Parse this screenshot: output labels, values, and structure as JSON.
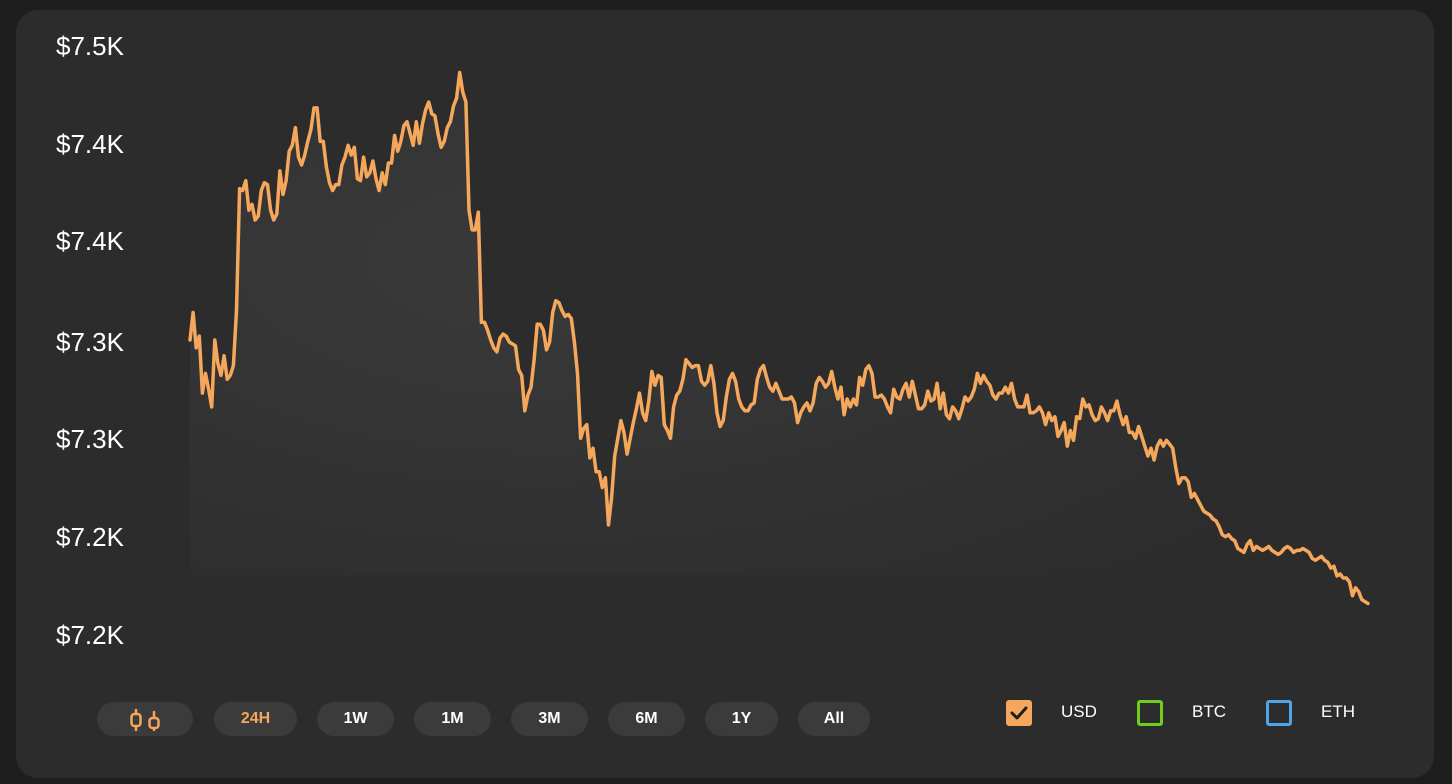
{
  "chart_data": {
    "type": "area",
    "y_ticks": [
      "$7.5K",
      "$7.4K",
      "$7.4K",
      "$7.3K",
      "$7.3K",
      "$7.2K",
      "$7.2K"
    ],
    "ylim": [
      7.175,
      7.475
    ],
    "series": [
      {
        "currency": "USD",
        "color": "#f5a75b",
        "values": [
          7.325,
          7.339,
          7.321,
          7.327,
          7.298,
          7.308,
          7.3,
          7.291,
          7.325,
          7.313,
          7.307,
          7.317,
          7.305,
          7.307,
          7.312,
          7.34,
          7.402,
          7.401,
          7.406,
          7.391,
          7.394,
          7.386,
          7.388,
          7.401,
          7.405,
          7.404,
          7.391,
          7.386,
          7.389,
          7.411,
          7.399,
          7.406,
          7.421,
          7.424,
          7.433,
          7.418,
          7.414,
          7.419,
          7.426,
          7.432,
          7.443,
          7.443,
          7.426,
          7.426,
          7.413,
          7.405,
          7.401,
          7.404,
          7.404,
          7.414,
          7.418,
          7.424,
          7.419,
          7.423,
          7.407,
          7.406,
          7.418,
          7.408,
          7.41,
          7.416,
          7.407,
          7.401,
          7.41,
          7.404,
          7.415,
          7.415,
          7.429,
          7.421,
          7.426,
          7.434,
          7.436,
          7.43,
          7.424,
          7.436,
          7.425,
          7.435,
          7.442,
          7.446,
          7.44,
          7.439,
          7.43,
          7.423,
          7.426,
          7.433,
          7.436,
          7.444,
          7.448,
          7.461,
          7.451,
          7.446,
          7.391,
          7.381,
          7.381,
          7.39,
          7.334,
          7.334,
          7.33,
          7.325,
          7.321,
          7.319,
          7.326,
          7.328,
          7.327,
          7.324,
          7.323,
          7.322,
          7.31,
          7.307,
          7.289,
          7.297,
          7.301,
          7.315,
          7.333,
          7.333,
          7.33,
          7.32,
          7.324,
          7.339,
          7.345,
          7.344,
          7.34,
          7.337,
          7.338,
          7.336,
          7.324,
          7.308,
          7.275,
          7.28,
          7.282,
          7.265,
          7.27,
          7.258,
          7.258,
          7.25,
          7.255,
          7.231,
          7.245,
          7.266,
          7.275,
          7.284,
          7.278,
          7.267,
          7.275,
          7.283,
          7.29,
          7.298,
          7.288,
          7.284,
          7.294,
          7.309,
          7.302,
          7.307,
          7.306,
          7.282,
          7.279,
          7.275,
          7.291,
          7.297,
          7.299,
          7.305,
          7.315,
          7.313,
          7.311,
          7.312,
          7.312,
          7.304,
          7.302,
          7.304,
          7.312,
          7.303,
          7.288,
          7.281,
          7.284,
          7.296,
          7.305,
          7.308,
          7.304,
          7.295,
          7.291,
          7.289,
          7.289,
          7.292,
          7.293,
          7.305,
          7.31,
          7.312,
          7.306,
          7.301,
          7.299,
          7.303,
          7.299,
          7.295,
          7.295,
          7.295,
          7.296,
          7.293,
          7.283,
          7.288,
          7.291,
          7.293,
          7.289,
          7.293,
          7.303,
          7.306,
          7.304,
          7.301,
          7.303,
          7.309,
          7.301,
          7.295,
          7.301,
          7.287,
          7.295,
          7.291,
          7.295,
          7.292,
          7.306,
          7.302,
          7.31,
          7.312,
          7.308,
          7.296,
          7.296,
          7.297,
          7.295,
          7.291,
          7.288,
          7.3,
          7.296,
          7.295,
          7.3,
          7.303,
          7.296,
          7.304,
          7.297,
          7.29,
          7.29,
          7.292,
          7.299,
          7.294,
          7.295,
          7.303,
          7.29,
          7.298,
          7.287,
          7.285,
          7.291,
          7.289,
          7.285,
          7.29,
          7.296,
          7.294,
          7.296,
          7.3,
          7.308,
          7.303,
          7.307,
          7.304,
          7.302,
          7.297,
          7.295,
          7.298,
          7.298,
          7.301,
          7.298,
          7.303,
          7.295,
          7.291,
          7.291,
          7.291,
          7.297,
          7.288,
          7.288,
          7.289,
          7.291,
          7.288,
          7.282,
          7.288,
          7.284,
          7.286,
          7.276,
          7.279,
          7.283,
          7.271,
          7.279,
          7.274,
          7.286,
          7.285,
          7.295,
          7.291,
          7.292,
          7.287,
          7.284,
          7.285,
          7.291,
          7.288,
          7.284,
          7.289,
          7.289,
          7.294,
          7.287,
          7.282,
          7.286,
          7.278,
          7.278,
          7.275,
          7.281,
          7.276,
          7.271,
          7.266,
          7.27,
          7.264,
          7.271,
          7.274,
          7.271,
          7.274,
          7.272,
          7.27,
          7.26,
          7.252,
          7.255,
          7.255,
          7.253,
          7.245,
          7.247,
          7.244,
          7.241,
          7.238,
          7.237,
          7.236,
          7.234,
          7.233,
          7.23,
          7.226,
          7.225,
          7.226,
          7.224,
          7.223,
          7.219,
          7.218,
          7.217,
          7.221,
          7.223,
          7.218,
          7.22,
          7.219,
          7.218,
          7.219,
          7.22,
          7.218,
          7.217,
          7.216,
          7.217,
          7.219,
          7.22,
          7.219,
          7.217,
          7.218,
          7.218,
          7.219,
          7.218,
          7.217,
          7.214,
          7.213,
          7.214,
          7.215,
          7.213,
          7.212,
          7.209,
          7.21,
          7.205,
          7.206,
          7.204,
          7.204,
          7.202,
          7.195,
          7.199,
          7.197,
          7.193,
          7.192,
          7.191
        ]
      }
    ],
    "grid": false,
    "legend_position": "bottom-right"
  },
  "ranges": {
    "candle_icon": "candlestick-icon",
    "items": [
      "24H",
      "1W",
      "1M",
      "3M",
      "6M",
      "1Y",
      "All"
    ],
    "active": "24H"
  },
  "legend": {
    "items": [
      {
        "label": "USD",
        "checked": true,
        "color": "#f5a75b"
      },
      {
        "label": "BTC",
        "checked": false,
        "color": "#6fce1a"
      },
      {
        "label": "ETH",
        "checked": false,
        "color": "#4fa3e8"
      }
    ]
  }
}
